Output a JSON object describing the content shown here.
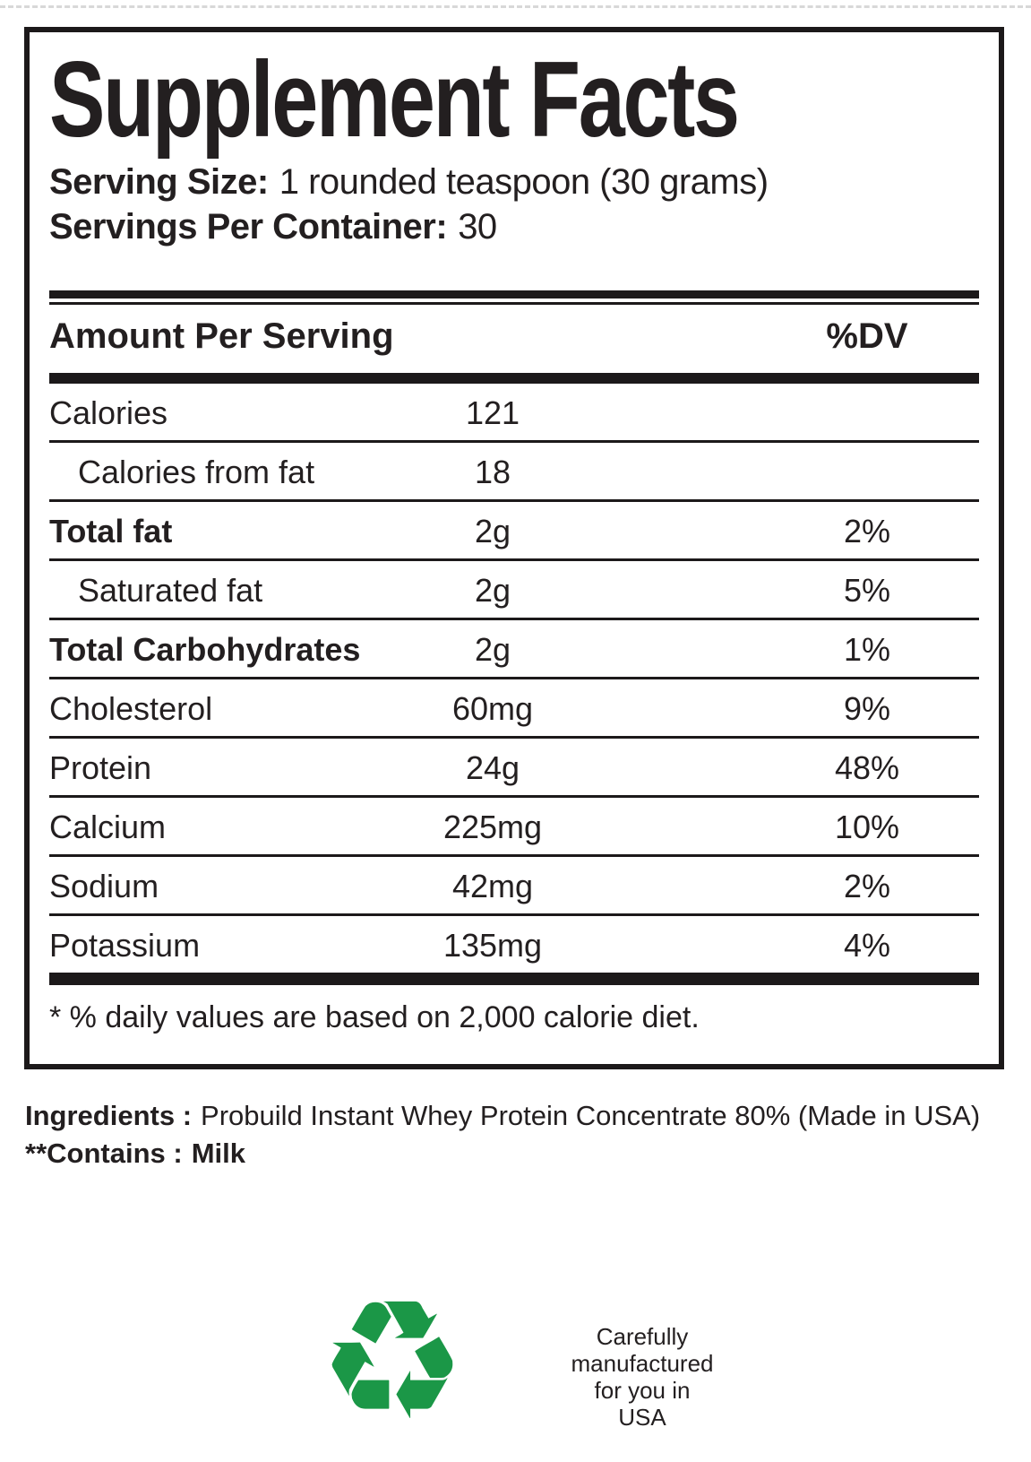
{
  "label": {
    "title": "Supplement Facts",
    "serving_size_label": "Serving Size:",
    "serving_size_value": "1 rounded teaspoon (30 grams)",
    "servings_per_container_label": "Servings Per Container:",
    "servings_per_container_value": "30",
    "header": {
      "amount_per_serving": "Amount Per Serving",
      "dv": "%DV"
    },
    "rows": [
      {
        "name": "Calories",
        "amount": "121",
        "dv": "",
        "bold": false,
        "indent": false
      },
      {
        "name": "Calories from fat",
        "amount": "18",
        "dv": "",
        "bold": false,
        "indent": true
      },
      {
        "name": "Total fat",
        "amount": "2g",
        "dv": "2%",
        "bold": true,
        "indent": false
      },
      {
        "name": "Saturated fat",
        "amount": "2g",
        "dv": "5%",
        "bold": false,
        "indent": true
      },
      {
        "name": "Total Carbohydrates",
        "amount": "2g",
        "dv": "1%",
        "bold": true,
        "indent": false
      },
      {
        "name": "Cholesterol",
        "amount": "60mg",
        "dv": "9%",
        "bold": false,
        "indent": false
      },
      {
        "name": "Protein",
        "amount": "24g",
        "dv": "48%",
        "bold": false,
        "indent": false
      },
      {
        "name": "Calcium",
        "amount": "225mg",
        "dv": "10%",
        "bold": false,
        "indent": false
      },
      {
        "name": "Sodium",
        "amount": "42mg",
        "dv": "2%",
        "bold": false,
        "indent": false
      },
      {
        "name": "Potassium",
        "amount": "135mg",
        "dv": "4%",
        "bold": false,
        "indent": false
      }
    ],
    "footnote": "* % daily values are based on 2,000 calorie diet."
  },
  "ingredients": {
    "label": "Ingredients :",
    "value": "Probuild Instant Whey Protein Concentrate 80% (Made in USA)"
  },
  "contains": {
    "label": "**Contains :",
    "value": "Milk"
  },
  "footer": {
    "recycle_icon": {
      "name": "recycle-icon",
      "glyph": "♻",
      "color": "#1b9747"
    },
    "lines": [
      "Carefully",
      "manufactured",
      "for you in",
      "USA"
    ]
  },
  "colors": {
    "text": "#231f20",
    "rule": "#1c191a",
    "recycle_green": "#1b9747"
  }
}
